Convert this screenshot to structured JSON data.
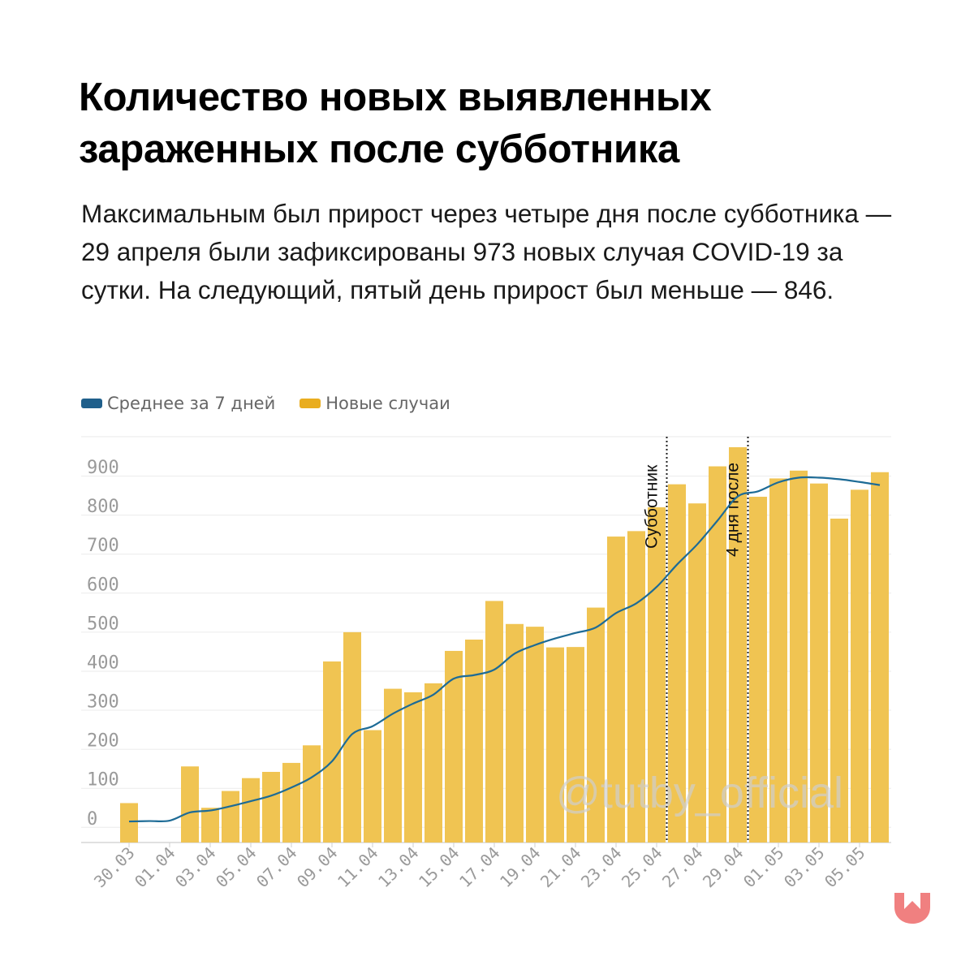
{
  "title": "Количество новых выявленных зараженных после субботника",
  "subtitle": "Максимальным был прирост через четыре дня после субботника — 29 апреля были зафиксированы 973 новых случая COVID-19 за сутки. На следующий, пятый день прирост был меньше — 846.",
  "watermark": "@tutby_official",
  "colors": {
    "bar": "#f0c452",
    "line": "#1d6b96",
    "legend_line": "#1f5f8b",
    "legend_bar": "#e9ad1f",
    "logo": "#f08080"
  },
  "chart_data": {
    "type": "bar",
    "title": "Количество новых выявленных зараженных после субботника",
    "legend": {
      "placement": "top-left",
      "entries": [
        "Среднее за 7 дней",
        "Новые случаи"
      ]
    },
    "x_tick_labels": [
      "30.03",
      "01.04",
      "03.04",
      "05.04",
      "07.04",
      "09.04",
      "11.04",
      "13.04",
      "15.04",
      "17.04",
      "19.04",
      "21.04",
      "23.04",
      "25.04",
      "27.04",
      "29.04",
      "01.05",
      "03.05",
      "05.05"
    ],
    "categories": [
      "30.03",
      "31.03",
      "01.04",
      "02.04",
      "03.04",
      "04.04",
      "05.04",
      "06.04",
      "07.04",
      "08.04",
      "09.04",
      "10.04",
      "11.04",
      "12.04",
      "13.04",
      "14.04",
      "15.04",
      "16.04",
      "17.04",
      "18.04",
      "19.04",
      "20.04",
      "21.04",
      "22.04",
      "23.04",
      "24.04",
      "25.04",
      "26.04",
      "27.04",
      "28.04",
      "29.04",
      "30.04",
      "01.05",
      "02.05",
      "03.05",
      "04.05",
      "05.05",
      "06.05"
    ],
    "y_ticks": [
      0,
      100,
      200,
      300,
      400,
      500,
      600,
      700,
      800,
      900
    ],
    "ylim": [
      -40,
      1000
    ],
    "grid": true,
    "series": [
      {
        "name": "Новые случаи",
        "type": "bar",
        "values": [
          61,
          0,
          0,
          155,
          49,
          92,
          125,
          141,
          164,
          209,
          424,
          499,
          248,
          354,
          345,
          368,
          451,
          480,
          579,
          520,
          513,
          460,
          461,
          562,
          744,
          758,
          819,
          878,
          829,
          924,
          973,
          846,
          893,
          913,
          880,
          790,
          864,
          909
        ]
      },
      {
        "name": "Среднее за 7 дней",
        "type": "line",
        "values": [
          14,
          15,
          16,
          37,
          42,
          53,
          66,
          80,
          101,
          127,
          168,
          238,
          258,
          290,
          316,
          339,
          380,
          389,
          403,
          444,
          466,
          483,
          497,
          511,
          548,
          573,
          615,
          672,
          724,
          785,
          847,
          860,
          883,
          895,
          895,
          891,
          884,
          876
        ]
      }
    ],
    "annotations": [
      {
        "label": "Субботник",
        "x": "25.04",
        "style": "dotted"
      },
      {
        "label": "4 дня после",
        "x": "29.04",
        "style": "dotted"
      }
    ]
  }
}
